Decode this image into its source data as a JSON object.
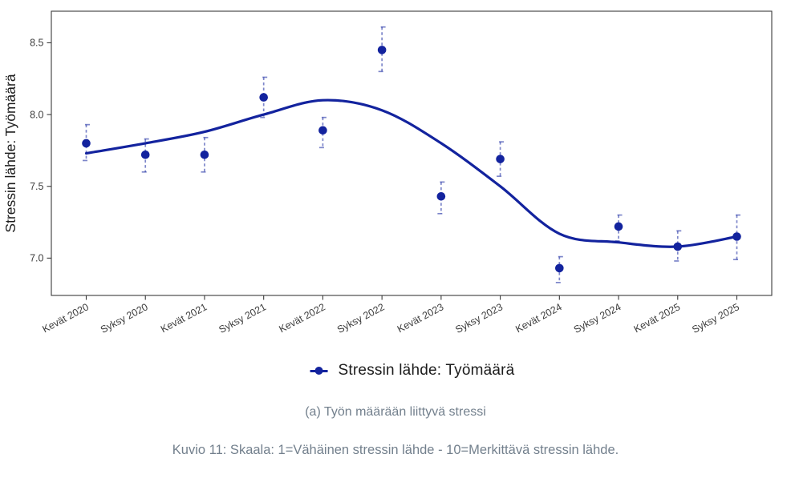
{
  "chart_data": {
    "type": "scatter",
    "title": "",
    "xlabel": "",
    "ylabel": "Stressin lähde: Työmäärä",
    "categories": [
      "Kevät 2020",
      "Syksy 2020",
      "Kevät 2021",
      "Syksy 2021",
      "Kevät 2022",
      "Syksy 2022",
      "Kevät 2023",
      "Syksy 2023",
      "Kevät 2024",
      "Syksy 2024",
      "Kevät 2025",
      "Syksy 2025"
    ],
    "series": [
      {
        "name": "Stressin lähde: Työmäärä",
        "values": [
          7.8,
          7.72,
          7.72,
          8.12,
          7.89,
          8.45,
          7.43,
          7.69,
          6.93,
          7.22,
          7.08,
          7.15
        ],
        "error_low": [
          7.68,
          7.6,
          7.6,
          7.98,
          7.77,
          8.3,
          7.31,
          7.57,
          6.83,
          7.12,
          6.98,
          6.99
        ],
        "error_high": [
          7.93,
          7.83,
          7.84,
          8.26,
          7.98,
          8.61,
          7.53,
          7.81,
          7.01,
          7.3,
          7.19,
          7.3
        ]
      }
    ],
    "trend_line": {
      "style": "smooth",
      "values": [
        7.73,
        7.8,
        7.88,
        8.0,
        8.1,
        8.03,
        7.8,
        7.5,
        7.17,
        7.11,
        7.08,
        7.15
      ]
    },
    "yticks": [
      "7.0",
      "7.5",
      "8.0",
      "8.5"
    ],
    "ylim": [
      6.74,
      8.72
    ],
    "grid": false,
    "error_bars": true,
    "legend_position": "bottom",
    "x_label_angle": -28
  },
  "legend": {
    "label": "Stressin lähde: Työmäärä"
  },
  "captions": {
    "subfigure": "(a) Työn määrään liittyvä stressi",
    "figure": "Kuvio 11: Skaala: 1=Vähäinen stressin lähde - 10=Merkittävä stressin lähde."
  },
  "colors": {
    "series": "#13239e",
    "error_bar": "#13239e",
    "error_bar_opacity": 0.55,
    "axis": "#3b3b3b",
    "tick_label": "#3d3d3d",
    "text": "#1c1c1c",
    "caption": "#73808d"
  }
}
